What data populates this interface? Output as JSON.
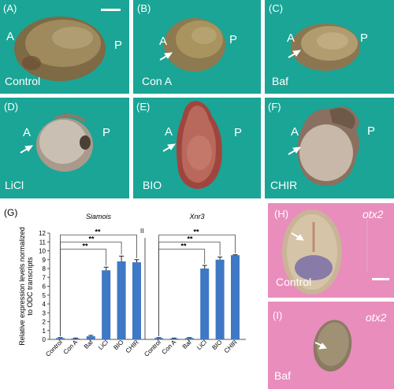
{
  "panels": {
    "A": {
      "label": "(A)",
      "anterior": "A",
      "posterior": "P",
      "condition": "Control"
    },
    "B": {
      "label": "(B)",
      "anterior": "A",
      "posterior": "P",
      "condition": "Con A"
    },
    "C": {
      "label": "(C)",
      "anterior": "A",
      "posterior": "P",
      "condition": "Baf"
    },
    "D": {
      "label": "(D)",
      "anterior": "A",
      "posterior": "P",
      "condition": "LiCl"
    },
    "E": {
      "label": "(E)",
      "anterior": "A",
      "posterior": "P",
      "condition": "BIO"
    },
    "F": {
      "label": "(F)",
      "anterior": "A",
      "posterior": "P",
      "condition": "CHIR"
    },
    "H": {
      "label": "(H)",
      "gene": "otx2",
      "condition": "Control"
    },
    "I": {
      "label": "(I)",
      "gene": "otx2",
      "condition": "Baf"
    }
  },
  "colors": {
    "teal": "#1aa596",
    "pink": "#e98dbd",
    "bar": "#3f78c4",
    "white": "#ffffff"
  },
  "chart_data": {
    "type": "bar",
    "panel_label": "(G)",
    "ylabel": "Relative expression levels normalized to ODC transcripts",
    "ylim": [
      0,
      12
    ],
    "yticks": [
      0,
      1,
      2,
      3,
      4,
      5,
      6,
      7,
      8,
      9,
      10,
      11,
      12
    ],
    "categories": [
      "Control",
      "Con A",
      "Baf",
      "LiCl",
      "BIO",
      "CHIR"
    ],
    "axis_break": "II",
    "significance": "**",
    "groups": [
      {
        "name": "Siamois",
        "values": [
          0.15,
          0.1,
          0.35,
          7.8,
          8.8,
          8.7
        ],
        "errors": [
          0.05,
          0.05,
          0.1,
          0.35,
          0.6,
          0.3
        ]
      },
      {
        "name": "Xnr3",
        "values": [
          0.15,
          0.1,
          0.15,
          8.0,
          9.0,
          9.5
        ],
        "errors": [
          0.05,
          0.05,
          0.05,
          0.35,
          0.3,
          0.05
        ]
      }
    ]
  }
}
